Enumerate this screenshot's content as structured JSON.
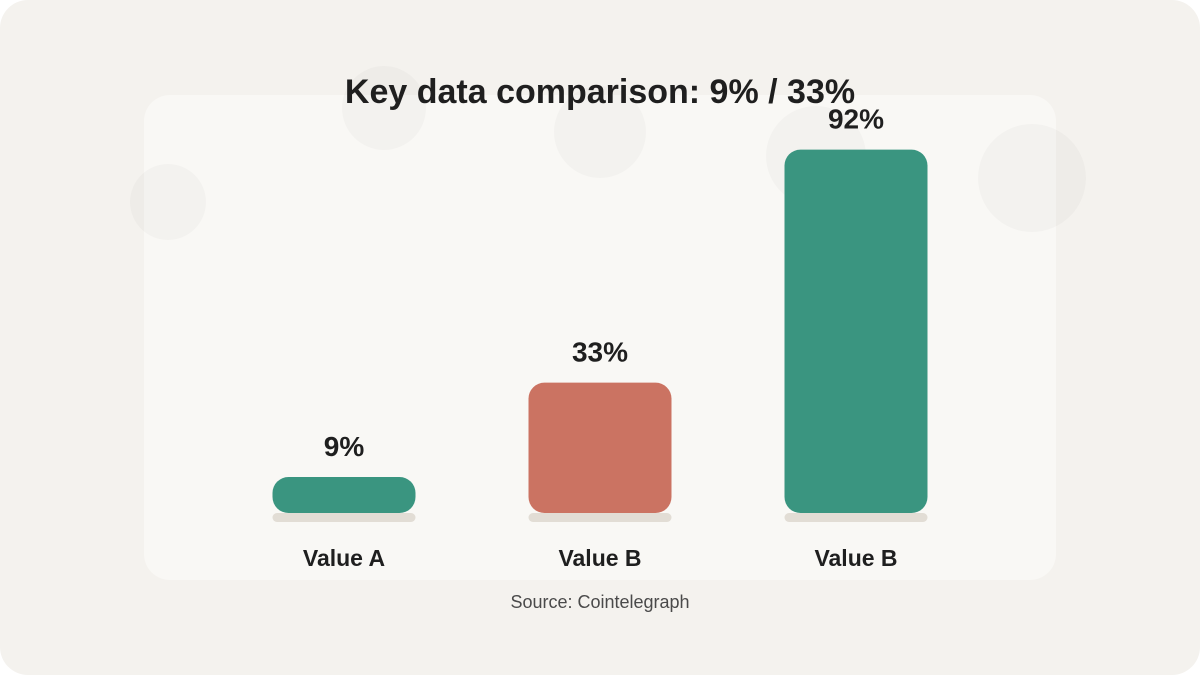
{
  "chart_data": {
    "type": "bar",
    "title": "Key data comparison: 9% / 33%",
    "categories": [
      "Value A",
      "Value B",
      "Value B"
    ],
    "values": [
      9,
      33,
      92
    ],
    "value_labels": [
      "9%",
      "33%",
      "92%"
    ],
    "unit": "%",
    "ylim": [
      0,
      100
    ],
    "grid": false,
    "legend": "none",
    "xlabel": "",
    "ylabel": "",
    "source": "Source: Cointelegraph",
    "colors": {
      "bars": [
        "#3a9580",
        "#cb7362",
        "#3a9580"
      ],
      "bar_shadow": "#e2ddd5",
      "background": "#f4f2ee",
      "panel": "#f9f8f5",
      "text": "#1f1f1f"
    }
  }
}
